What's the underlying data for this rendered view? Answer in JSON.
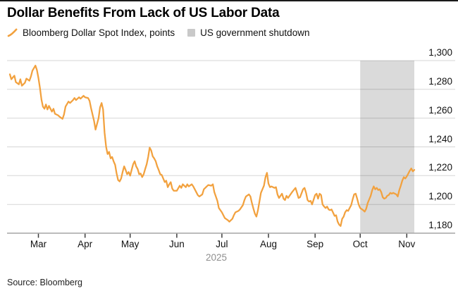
{
  "title": "Dollar Benefits From Lack of US Labor Data",
  "legend": [
    {
      "label": "Bloomberg Dollar Spot Index, points",
      "swatch": "line-mark",
      "color": "#F2A13E"
    },
    {
      "label": "US government shutdown",
      "swatch": "square",
      "color": "#C9C9C9"
    }
  ],
  "source": "Source: Bloomberg",
  "chart_data": {
    "type": "line",
    "title": "Dollar Benefits From Lack of US Labor Data",
    "series_name": "Bloomberg Dollar Spot Index, points",
    "line_color": "#F2A13E",
    "grid": "horizontal",
    "legend_position": "top",
    "y_axis_side": "right",
    "ylim": [
      1180,
      1300
    ],
    "y_ticks": [
      1180,
      1200,
      1220,
      1240,
      1260,
      1280,
      1300
    ],
    "y_tick_labels": [
      "1,180",
      "1,200",
      "1,220",
      "1,240",
      "1,260",
      "1,280",
      "1,300"
    ],
    "x_encoding": "days since 2025-02-10",
    "x_start_date": "2025-02-10",
    "x_end_date": "2025-11-06",
    "x_ticks": [
      {
        "label": "Mar",
        "day": 19
      },
      {
        "label": "Apr",
        "day": 50
      },
      {
        "label": "May",
        "day": 80
      },
      {
        "label": "Jun",
        "day": 111
      },
      {
        "label": "Jul",
        "day": 141
      },
      {
        "label": "Aug",
        "day": 172
      },
      {
        "label": "Sep",
        "day": 203
      },
      {
        "label": "Oct",
        "day": 233
      },
      {
        "label": "Nov",
        "day": 264
      }
    ],
    "year_label": "2025",
    "shaded_region": {
      "label": "US government shutdown",
      "start_date": "2025-10-01",
      "end_date": "2025-11-06",
      "start_day": 233,
      "end_day": 269,
      "color": "#DADADA"
    },
    "points": [
      [
        0,
        1290.5
      ],
      [
        1,
        1287
      ],
      [
        3,
        1289.5
      ],
      [
        4,
        1285
      ],
      [
        6,
        1283.5
      ],
      [
        7,
        1287
      ],
      [
        8,
        1282.5
      ],
      [
        10,
        1284.5
      ],
      [
        11,
        1287.5
      ],
      [
        13,
        1286
      ],
      [
        14,
        1289
      ],
      [
        15,
        1293
      ],
      [
        17,
        1296.5
      ],
      [
        18,
        1293.5
      ],
      [
        19,
        1288
      ],
      [
        20,
        1281
      ],
      [
        21,
        1273
      ],
      [
        22,
        1268
      ],
      [
        23,
        1266.5
      ],
      [
        24,
        1269.5
      ],
      [
        25,
        1266
      ],
      [
        26,
        1268.5
      ],
      [
        28,
        1264.5
      ],
      [
        29,
        1266.5
      ],
      [
        30,
        1263
      ],
      [
        32,
        1262
      ],
      [
        33,
        1261
      ],
      [
        35,
        1259.5
      ],
      [
        36,
        1262.5
      ],
      [
        37,
        1268
      ],
      [
        39,
        1271.5
      ],
      [
        40,
        1270.5
      ],
      [
        42,
        1272.5
      ],
      [
        43,
        1274
      ],
      [
        44,
        1272.5
      ],
      [
        46,
        1274.5
      ],
      [
        47,
        1273.5
      ],
      [
        49,
        1275.5
      ],
      [
        50,
        1274.5
      ],
      [
        52,
        1274
      ],
      [
        53,
        1272
      ],
      [
        54,
        1267
      ],
      [
        56,
        1258
      ],
      [
        57,
        1252
      ],
      [
        59,
        1260
      ],
      [
        60,
        1267.5
      ],
      [
        61,
        1270.5
      ],
      [
        62,
        1266
      ],
      [
        63,
        1250
      ],
      [
        64,
        1240
      ],
      [
        65,
        1235
      ],
      [
        66,
        1236.5
      ],
      [
        67,
        1232
      ],
      [
        68,
        1233
      ],
      [
        69,
        1230
      ],
      [
        70,
        1227.5
      ],
      [
        71,
        1221.5
      ],
      [
        72,
        1217
      ],
      [
        73,
        1216
      ],
      [
        74,
        1218
      ],
      [
        75,
        1222.5
      ],
      [
        76,
        1226.5
      ],
      [
        77,
        1224
      ],
      [
        78,
        1221
      ],
      [
        79,
        1222.5
      ],
      [
        80,
        1220
      ],
      [
        81,
        1224
      ],
      [
        82,
        1228
      ],
      [
        83,
        1230
      ],
      [
        84,
        1226.5
      ],
      [
        85,
        1224.5
      ],
      [
        86,
        1221
      ],
      [
        87,
        1221.5
      ],
      [
        88,
        1219
      ],
      [
        89,
        1221
      ],
      [
        90,
        1224.5
      ],
      [
        91,
        1228
      ],
      [
        92,
        1233
      ],
      [
        93,
        1239.5
      ],
      [
        94,
        1237.5
      ],
      [
        95,
        1233.5
      ],
      [
        96,
        1232
      ],
      [
        97,
        1230
      ],
      [
        98,
        1226.5
      ],
      [
        99,
        1224
      ],
      [
        100,
        1221
      ],
      [
        101,
        1220.5
      ],
      [
        102,
        1218
      ],
      [
        103,
        1215.5
      ],
      [
        104,
        1216.5
      ],
      [
        105,
        1212
      ],
      [
        106,
        1214
      ],
      [
        107,
        1215.5
      ],
      [
        108,
        1211
      ],
      [
        109,
        1209.5
      ],
      [
        111,
        1209.5
      ],
      [
        113,
        1213
      ],
      [
        114,
        1211.5
      ],
      [
        115,
        1214
      ],
      [
        117,
        1212
      ],
      [
        118,
        1214
      ],
      [
        119,
        1212.5
      ],
      [
        121,
        1214
      ],
      [
        122,
        1212.5
      ],
      [
        124,
        1208.5
      ],
      [
        125,
        1206.5
      ],
      [
        126,
        1205.5
      ],
      [
        128,
        1207
      ],
      [
        129,
        1210.5
      ],
      [
        131,
        1212.5
      ],
      [
        132,
        1213.5
      ],
      [
        134,
        1213
      ],
      [
        135,
        1214
      ],
      [
        136,
        1208.5
      ],
      [
        138,
        1202.5
      ],
      [
        139,
        1197.5
      ],
      [
        141,
        1194.5
      ],
      [
        142,
        1192.5
      ],
      [
        143,
        1190.5
      ],
      [
        145,
        1189
      ],
      [
        146,
        1188
      ],
      [
        148,
        1190
      ],
      [
        149,
        1192.5
      ],
      [
        150,
        1194.5
      ],
      [
        152,
        1195.5
      ],
      [
        153,
        1196.5
      ],
      [
        155,
        1199.5
      ],
      [
        156,
        1203
      ],
      [
        157,
        1205.5
      ],
      [
        159,
        1207
      ],
      [
        160,
        1205.5
      ],
      [
        161,
        1201
      ],
      [
        162,
        1197
      ],
      [
        163,
        1193.5
      ],
      [
        164,
        1191.5
      ],
      [
        165,
        1196
      ],
      [
        166,
        1202
      ],
      [
        167,
        1208
      ],
      [
        169,
        1213
      ],
      [
        170,
        1219
      ],
      [
        171,
        1222
      ],
      [
        172,
        1214.5
      ],
      [
        173,
        1212
      ],
      [
        174,
        1212.5
      ],
      [
        176,
        1211.5
      ],
      [
        177,
        1212
      ],
      [
        178,
        1207
      ],
      [
        179,
        1204.5
      ],
      [
        181,
        1207.5
      ],
      [
        182,
        1204
      ],
      [
        183,
        1203
      ],
      [
        184,
        1206
      ],
      [
        185,
        1204.5
      ],
      [
        187,
        1207.5
      ],
      [
        188,
        1209
      ],
      [
        190,
        1211.5
      ],
      [
        191,
        1208
      ],
      [
        192,
        1204.5
      ],
      [
        193,
        1205
      ],
      [
        195,
        1210.5
      ],
      [
        196,
        1211.5
      ],
      [
        197,
        1208
      ],
      [
        198,
        1203
      ],
      [
        199,
        1202
      ],
      [
        200,
        1202.5
      ],
      [
        201,
        1200
      ],
      [
        203,
        1206.5
      ],
      [
        204,
        1207.5
      ],
      [
        205,
        1204
      ],
      [
        206,
        1207.5
      ],
      [
        207,
        1206.5
      ],
      [
        208,
        1200
      ],
      [
        209,
        1198.5
      ],
      [
        210,
        1197.5
      ],
      [
        211,
        1198.5
      ],
      [
        212,
        1196.5
      ],
      [
        213,
        1196
      ],
      [
        214,
        1196.5
      ],
      [
        216,
        1192
      ],
      [
        217,
        1192.5
      ],
      [
        218,
        1188
      ],
      [
        219,
        1186
      ],
      [
        220,
        1185
      ],
      [
        221,
        1190
      ],
      [
        222,
        1191.5
      ],
      [
        223,
        1194.5
      ],
      [
        224,
        1196
      ],
      [
        225,
        1195.5
      ],
      [
        226,
        1197.5
      ],
      [
        227,
        1199.5
      ],
      [
        228,
        1203.5
      ],
      [
        229,
        1207
      ],
      [
        230,
        1207.5
      ],
      [
        231,
        1204
      ],
      [
        232,
        1200
      ],
      [
        233,
        1197.5
      ],
      [
        235,
        1196
      ],
      [
        236,
        1195
      ],
      [
        237,
        1197
      ],
      [
        238,
        1201
      ],
      [
        239,
        1203.5
      ],
      [
        240,
        1206
      ],
      [
        241,
        1210
      ],
      [
        242,
        1212.5
      ],
      [
        243,
        1210.5
      ],
      [
        244,
        1211.5
      ],
      [
        245,
        1210
      ],
      [
        246,
        1210.5
      ],
      [
        247,
        1208.5
      ],
      [
        248,
        1205
      ],
      [
        249,
        1204
      ],
      [
        250,
        1204.5
      ],
      [
        251,
        1206
      ],
      [
        252,
        1206.5
      ],
      [
        253,
        1208
      ],
      [
        254,
        1207.5
      ],
      [
        255,
        1208
      ],
      [
        256,
        1207.5
      ],
      [
        257,
        1207
      ],
      [
        258,
        1205.5
      ],
      [
        259,
        1210
      ],
      [
        260,
        1213
      ],
      [
        261,
        1216.5
      ],
      [
        262,
        1219
      ],
      [
        263,
        1218
      ],
      [
        264,
        1219.5
      ],
      [
        265,
        1221.5
      ],
      [
        266,
        1223.5
      ],
      [
        267,
        1225
      ],
      [
        268,
        1223
      ],
      [
        269,
        1224
      ]
    ]
  }
}
